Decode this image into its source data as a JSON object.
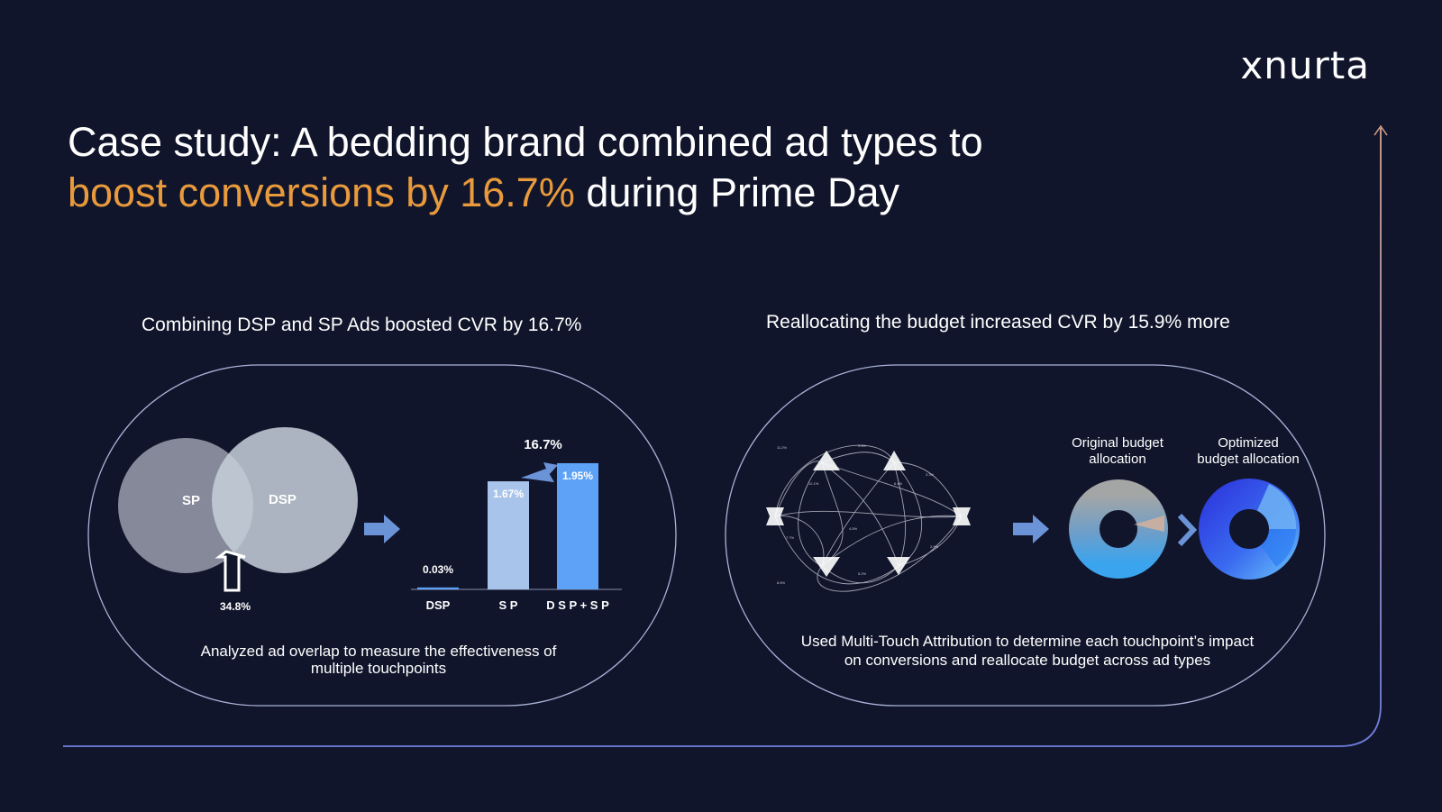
{
  "brand": {
    "logo": "xnurta"
  },
  "title": {
    "line1": "Case study: A bedding brand combined ad types to",
    "accent": "boost conversions by 16.7%",
    "rest": " during Prime Day"
  },
  "left_panel": {
    "heading": "Combining DSP and SP Ads boosted CVR by 16.7%",
    "venn": {
      "left": "SP",
      "right": "DSP",
      "overlap": "34.8%"
    },
    "caption_line1": "Analyzed ad overlap to measure the effectiveness of",
    "caption_line2": "multiple touchpoints"
  },
  "right_panel": {
    "heading": "Reallocating the budget increased CVR by 15.9% more",
    "original_label_line1": "Original budget",
    "original_label_line2": "allocation",
    "optimized_label_line1": "Optimized",
    "optimized_label_line2": "budget allocation",
    "caption_line1": "Used Multi-Touch Attribution to determine each touchpoint’s impact",
    "caption_line2": "on conversions and reallocate budget across ad types"
  },
  "colors": {
    "background": "#11152b",
    "accent": "#e89a3c",
    "bar_sp": "#a9c4ea",
    "bar_combined": "#5ea2f7",
    "panel_outline": "#aab3d8"
  },
  "chart_data": {
    "type": "bar",
    "categories": [
      "DSP",
      "S P",
      "D S P + S P"
    ],
    "values": [
      0.03,
      1.67,
      1.95
    ],
    "labels": [
      "0.03%",
      "1.67%",
      "1.95%"
    ],
    "uplift_label": "16.7%",
    "ylim": [
      0,
      2.2
    ],
    "grid": false
  }
}
